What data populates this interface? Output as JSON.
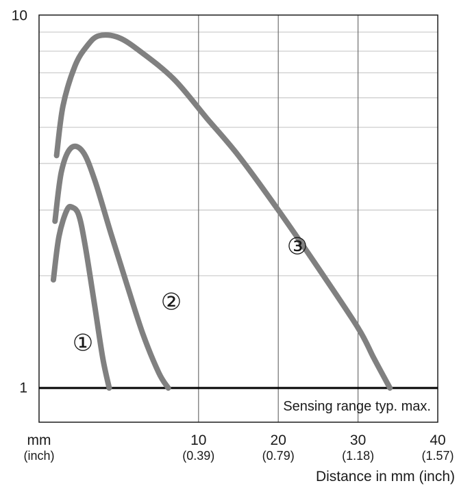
{
  "chart_data": {
    "type": "line",
    "y_scale": "log",
    "ylim": [
      0.7,
      10
    ],
    "xlim": [
      -10,
      40
    ],
    "y_tick_labels": [
      "10",
      "1"
    ],
    "x_unit_label": "mm",
    "x_unit_sub_label": "(inch)",
    "x_ticks": [
      {
        "label": "10",
        "sub": "(0.39)",
        "value": 10
      },
      {
        "label": "20",
        "sub": "(0.79)",
        "value": 20
      },
      {
        "label": "30",
        "sub": "(1.18)",
        "value": 30
      },
      {
        "label": "40",
        "sub": "(1.57)",
        "value": 40
      }
    ],
    "xlabel": "Distance in mm (inch)",
    "grid": true,
    "reference_line": {
      "y": 1,
      "label": "Sensing range typ. max."
    },
    "series": [
      {
        "name": "①",
        "color": "#808080",
        "x": [
          -8.2,
          -7.5,
          -6.5,
          -5.8,
          -5.0,
          -4.2,
          -3.0,
          -2.0,
          -1.2
        ],
        "y": [
          1.95,
          2.55,
          3.0,
          3.05,
          2.9,
          2.4,
          1.65,
          1.2,
          1.0
        ]
      },
      {
        "name": "②",
        "color": "#808080",
        "x": [
          -8.0,
          -7.2,
          -6.0,
          -4.5,
          -3.0,
          -1.0,
          1.0,
          3.0,
          5.0,
          6.2
        ],
        "y": [
          2.8,
          3.8,
          4.4,
          4.3,
          3.6,
          2.6,
          1.9,
          1.4,
          1.1,
          1.0
        ]
      },
      {
        "name": "③",
        "color": "#808080",
        "x": [
          -7.8,
          -7.0,
          -5.5,
          -4.0,
          -2.5,
          0.0,
          3.0,
          7.0,
          11.0,
          15.0,
          20.0,
          25.0,
          30.0,
          32.0,
          34.0
        ],
        "y": [
          4.2,
          5.7,
          7.3,
          8.25,
          8.8,
          8.7,
          7.9,
          6.7,
          5.3,
          4.2,
          3.0,
          2.1,
          1.45,
          1.2,
          1.0
        ]
      }
    ]
  }
}
